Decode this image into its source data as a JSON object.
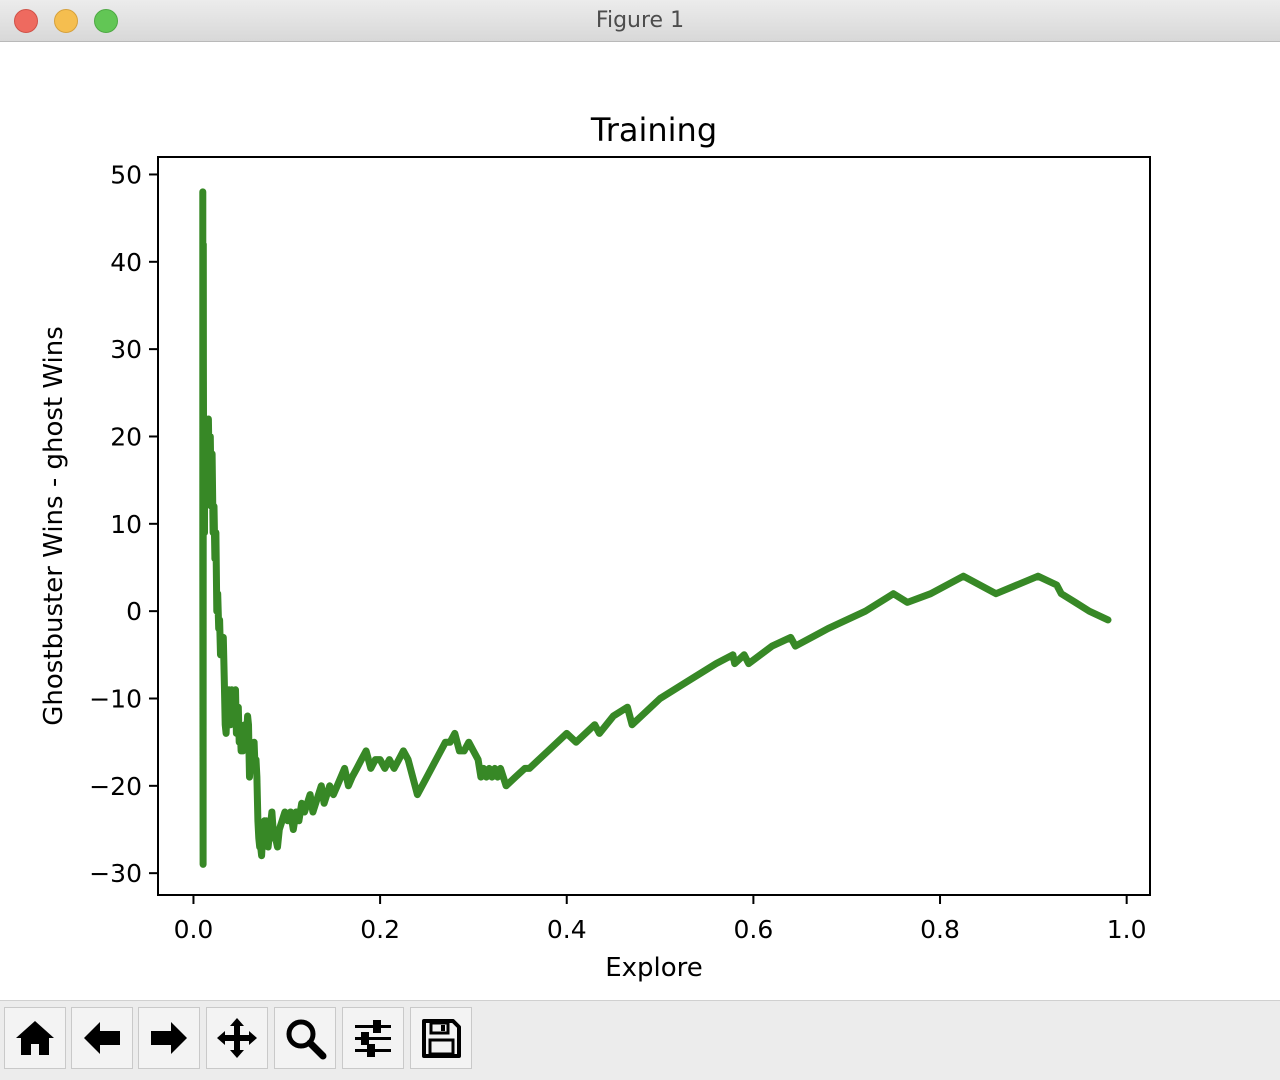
{
  "window": {
    "title": "Figure 1"
  },
  "toolbar": {
    "buttons": [
      {
        "name": "home-button",
        "icon": "home-icon"
      },
      {
        "name": "back-button",
        "icon": "arrow-left-icon"
      },
      {
        "name": "forward-button",
        "icon": "arrow-right-icon"
      },
      {
        "name": "pan-button",
        "icon": "move-icon"
      },
      {
        "name": "zoom-button",
        "icon": "magnifier-icon"
      },
      {
        "name": "configure-subplots-button",
        "icon": "sliders-icon"
      },
      {
        "name": "save-button",
        "icon": "floppy-disk-icon"
      }
    ]
  },
  "chart_data": {
    "type": "line",
    "title": "Training",
    "xlabel": "Explore",
    "ylabel": "Ghostbuster Wins - ghost Wins",
    "xlim": [
      -0.038,
      1.025
    ],
    "ylim": [
      -32.5,
      52
    ],
    "xticks": [
      0.0,
      0.2,
      0.4,
      0.6,
      0.8,
      1.0
    ],
    "xtick_labels": [
      "0.0",
      "0.2",
      "0.4",
      "0.6",
      "0.8",
      "1.0"
    ],
    "yticks": [
      -30,
      -20,
      -10,
      0,
      10,
      20,
      30,
      40,
      50
    ],
    "ytick_labels": [
      "−30",
      "−20",
      "−10",
      "0",
      "10",
      "20",
      "30",
      "40",
      "50"
    ],
    "grid": false,
    "color": "#378826",
    "series": [
      {
        "x": [
          0.01,
          0.01,
          0.0103,
          0.0105,
          0.0107,
          0.011,
          0.0112,
          0.0115,
          0.0118,
          0.012,
          0.0125,
          0.013,
          0.014,
          0.015,
          0.016,
          0.017,
          0.018,
          0.019,
          0.02,
          0.021,
          0.022,
          0.023,
          0.024,
          0.025,
          0.026,
          0.027,
          0.028,
          0.029,
          0.03,
          0.031,
          0.032,
          0.033,
          0.034,
          0.035,
          0.036,
          0.037,
          0.038,
          0.039,
          0.04,
          0.041,
          0.042,
          0.043,
          0.044,
          0.045,
          0.046,
          0.047,
          0.048,
          0.049,
          0.05,
          0.051,
          0.052,
          0.053,
          0.054,
          0.055,
          0.056,
          0.057,
          0.058,
          0.059,
          0.06,
          0.061,
          0.062,
          0.063,
          0.064,
          0.065,
          0.066,
          0.067,
          0.068,
          0.069,
          0.07,
          0.071,
          0.072,
          0.073,
          0.074,
          0.075,
          0.076,
          0.077,
          0.078,
          0.08,
          0.082,
          0.084,
          0.086,
          0.088,
          0.09,
          0.092,
          0.095,
          0.098,
          0.101,
          0.104,
          0.107,
          0.11,
          0.113,
          0.116,
          0.119,
          0.122,
          0.125,
          0.128,
          0.131,
          0.134,
          0.137,
          0.14,
          0.143,
          0.146,
          0.15,
          0.154,
          0.158,
          0.162,
          0.166,
          0.17,
          0.175,
          0.18,
          0.185,
          0.19,
          0.195,
          0.2,
          0.205,
          0.21,
          0.215,
          0.22,
          0.225,
          0.23,
          0.24,
          0.25,
          0.26,
          0.27,
          0.275,
          0.28,
          0.285,
          0.29,
          0.295,
          0.3,
          0.305,
          0.308,
          0.311,
          0.314,
          0.317,
          0.32,
          0.323,
          0.326,
          0.329,
          0.332,
          0.335,
          0.345,
          0.355,
          0.36,
          0.38,
          0.4,
          0.41,
          0.43,
          0.435,
          0.45,
          0.465,
          0.47,
          0.5,
          0.53,
          0.56,
          0.578,
          0.58,
          0.59,
          0.595,
          0.62,
          0.64,
          0.645,
          0.68,
          0.72,
          0.75,
          0.765,
          0.79,
          0.825,
          0.86,
          0.905,
          0.925,
          0.93,
          0.945,
          0.96,
          0.98
        ],
        "y": [
          48,
          5,
          -29,
          42,
          28,
          10,
          20,
          18,
          9,
          22,
          14,
          21,
          20,
          17,
          22,
          15,
          20,
          12,
          18,
          9,
          12,
          6,
          9,
          0,
          2,
          -2,
          -1,
          -5,
          -3,
          -4,
          -3,
          -8,
          -13,
          -14,
          -11,
          -12,
          -9,
          -10,
          -13,
          -9,
          -12,
          -10,
          -11,
          -9,
          -14,
          -12,
          -11,
          -15,
          -13,
          -16,
          -15,
          -16,
          -14,
          -13,
          -15,
          -14,
          -12,
          -13,
          -19,
          -17,
          -18,
          -16,
          -17,
          -15,
          -18,
          -17,
          -19,
          -24,
          -26,
          -27,
          -27,
          -28,
          -26,
          -27,
          -24,
          -25,
          -24,
          -27,
          -25,
          -23,
          -26,
          -26,
          -27,
          -25,
          -24,
          -23,
          -24,
          -23,
          -25,
          -23,
          -24,
          -22,
          -23,
          -22,
          -21,
          -23,
          -22,
          -21,
          -20,
          -22,
          -21,
          -20,
          -21,
          -20,
          -19,
          -18,
          -20,
          -19,
          -18,
          -17,
          -16,
          -18,
          -17,
          -17,
          -18,
          -17,
          -18,
          -17,
          -16,
          -17,
          -21,
          -19,
          -17,
          -15,
          -15,
          -14,
          -16,
          -16,
          -15,
          -16,
          -17,
          -19,
          -18,
          -19,
          -18,
          -19,
          -18,
          -19,
          -18,
          -19,
          -20,
          -19,
          -18,
          -18,
          -16,
          -14,
          -15,
          -13,
          -14,
          -12,
          -11,
          -13,
          -10,
          -8,
          -6,
          -5,
          -6,
          -5,
          -6,
          -4,
          -3,
          -4,
          -2,
          0,
          2,
          1,
          2,
          4,
          2,
          4,
          3,
          2,
          1,
          0,
          -1
        ]
      }
    ]
  }
}
